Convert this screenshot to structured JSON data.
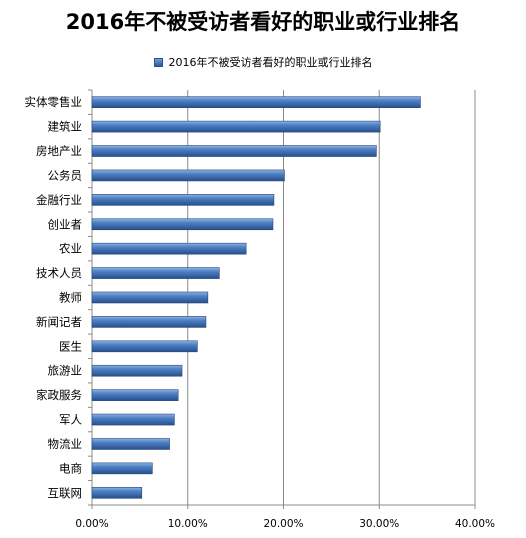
{
  "chart_data": {
    "type": "bar",
    "orientation": "horizontal",
    "title": "2016年不被受访者看好的职业或行业排名",
    "categories": [
      "实体零售业",
      "建筑业",
      "房地产业",
      "公务员",
      "金融行业",
      "创业者",
      "农业",
      "技术人员",
      "教师",
      "新闻记者",
      "医生",
      "旅游业",
      "家政服务",
      "军人",
      "物流业",
      "电商",
      "互联网"
    ],
    "series": [
      {
        "name": "2016年不被受访者看好的职业或行业排名",
        "values": [
          34.3,
          30.1,
          29.7,
          20.1,
          19.0,
          18.9,
          16.1,
          13.3,
          12.1,
          11.9,
          11.0,
          9.4,
          9.0,
          8.6,
          8.1,
          6.3,
          5.2
        ]
      }
    ],
    "xlim": [
      0,
      40
    ],
    "xticks": [
      "0.00%",
      "10.00%",
      "20.00%",
      "30.00%",
      "40.00%"
    ],
    "grid": "vertical",
    "legend_position": "top",
    "bar_color": "#3d6fb3"
  }
}
